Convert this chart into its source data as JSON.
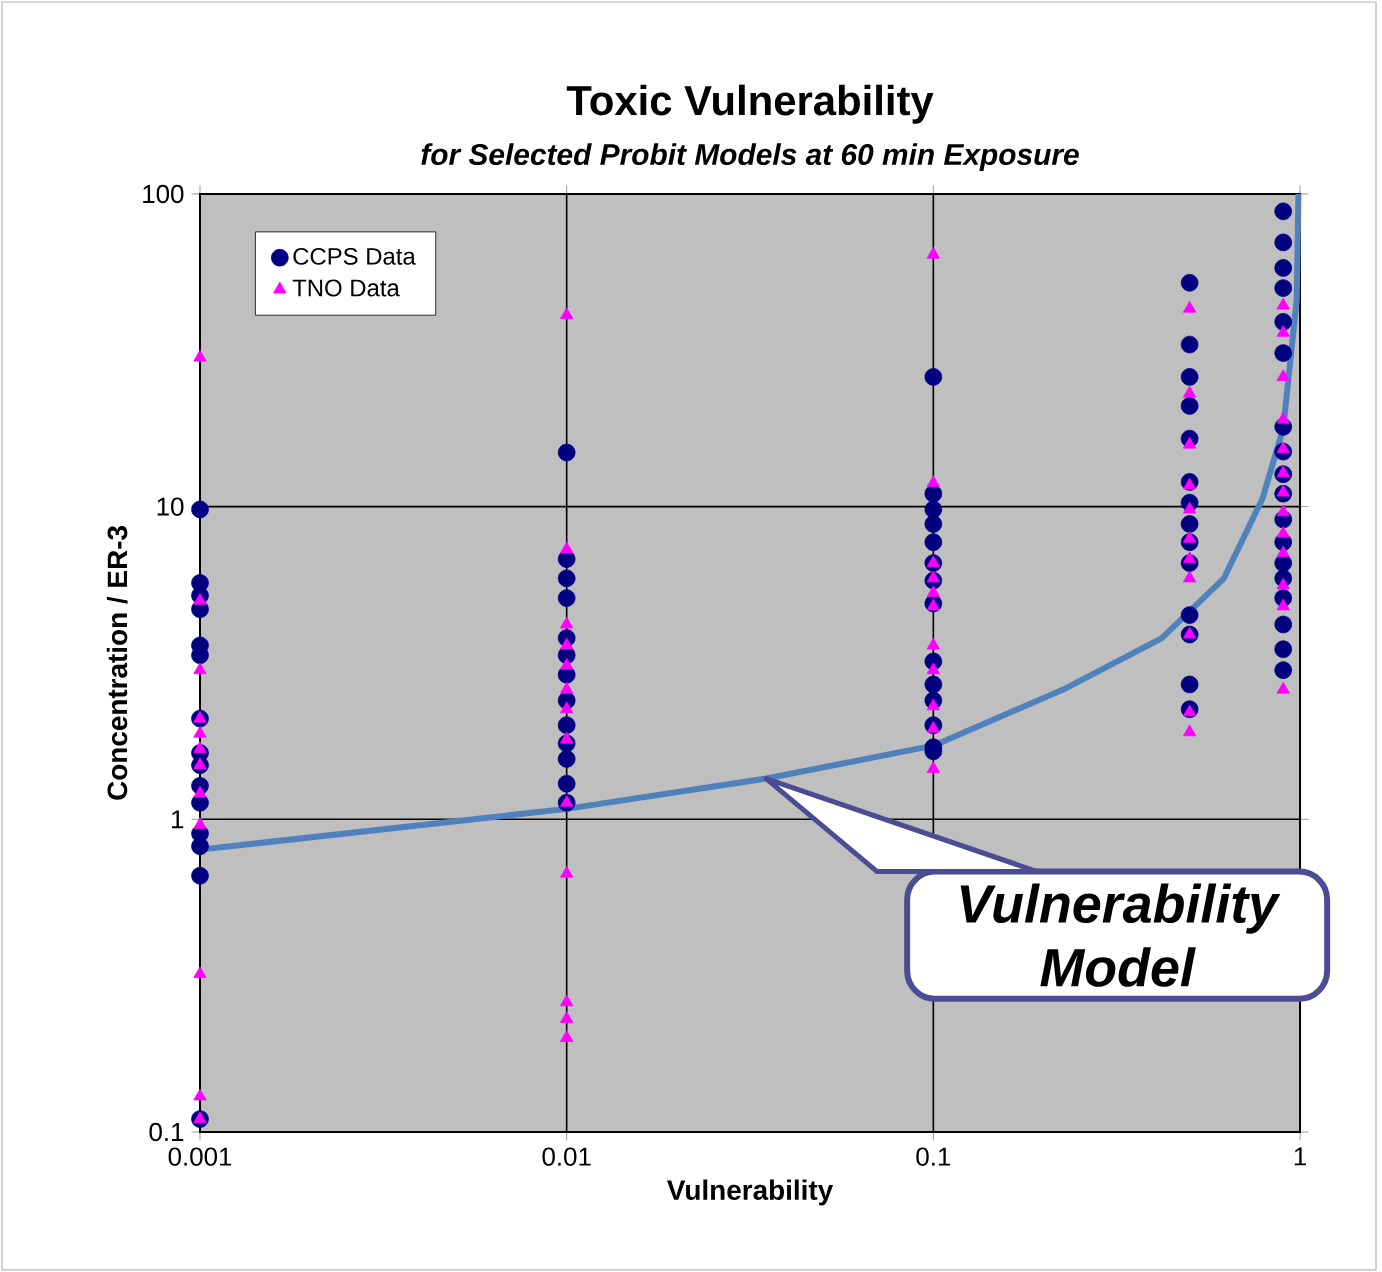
{
  "chart_data": {
    "type": "scatter",
    "title": "Toxic Vulnerability",
    "subtitle": "for Selected Probit Models at 60 min Exposure",
    "xlabel": "Vulnerability",
    "ylabel": "Concentration / ER-3",
    "log": "xy",
    "xlim": [
      0.001,
      1
    ],
    "ylim": [
      0.1,
      100
    ],
    "xticks": [
      0.001,
      0.01,
      0.1,
      1
    ],
    "yticks": [
      0.1,
      1,
      10,
      100
    ],
    "grid": true,
    "legend": "top left",
    "series": [
      {
        "name": "CCPS Data",
        "color": "#000080",
        "marker": "circle",
        "x": [
          0.001,
          0.001,
          0.001,
          0.001,
          0.001,
          0.001,
          0.001,
          0.001,
          0.001,
          0.001,
          0.001,
          0.001,
          0.001,
          0.001,
          0.001,
          0.01,
          0.01,
          0.01,
          0.01,
          0.01,
          0.01,
          0.01,
          0.01,
          0.01,
          0.01,
          0.01,
          0.01,
          0.01,
          0.1,
          0.1,
          0.1,
          0.1,
          0.1,
          0.1,
          0.1,
          0.1,
          0.1,
          0.1,
          0.1,
          0.1,
          0.1,
          0.1,
          0.5,
          0.5,
          0.5,
          0.5,
          0.5,
          0.5,
          0.5,
          0.5,
          0.5,
          0.5,
          0.5,
          0.5,
          0.5,
          0.5,
          0.9,
          0.9,
          0.9,
          0.9,
          0.9,
          0.9,
          0.9,
          0.9,
          0.9,
          0.9,
          0.9,
          0.9,
          0.9,
          0.9,
          0.9,
          0.9,
          0.9,
          0.9
        ],
        "values": [
          9.8,
          5.7,
          5.2,
          4.7,
          3.6,
          3.35,
          2.1,
          1.63,
          1.49,
          1.28,
          1.13,
          0.9,
          0.82,
          0.66,
          0.11,
          14.9,
          6.8,
          5.9,
          5.1,
          3.8,
          3.35,
          2.9,
          2.4,
          2.0,
          1.75,
          1.56,
          1.3,
          1.13,
          26,
          11,
          9.8,
          8.8,
          7.7,
          6.6,
          5.8,
          4.9,
          3.2,
          2.7,
          2.4,
          2.0,
          1.65,
          1.7,
          52,
          33,
          26,
          21,
          16.5,
          12,
          10.3,
          8.8,
          7.7,
          6.6,
          4.5,
          3.9,
          2.7,
          2.25,
          88,
          70,
          58,
          50,
          39,
          31,
          18,
          15,
          12.7,
          11,
          9.1,
          7.7,
          6.6,
          5.9,
          5.1,
          4.2,
          3.5,
          3.0
        ]
      },
      {
        "name": "TNO Data",
        "color": "#ff00ff",
        "marker": "triangle",
        "x": [
          0.001,
          0.001,
          0.001,
          0.001,
          0.001,
          0.001,
          0.001,
          0.001,
          0.001,
          0.001,
          0.001,
          0.001,
          0.01,
          0.01,
          0.01,
          0.01,
          0.01,
          0.01,
          0.01,
          0.01,
          0.01,
          0.01,
          0.01,
          0.01,
          0.01,
          0.1,
          0.1,
          0.1,
          0.1,
          0.1,
          0.1,
          0.1,
          0.1,
          0.1,
          0.1,
          0.1,
          0.5,
          0.5,
          0.5,
          0.5,
          0.5,
          0.5,
          0.5,
          0.5,
          0.5,
          0.5,
          0.5,
          0.9,
          0.9,
          0.9,
          0.9,
          0.9,
          0.9,
          0.9,
          0.9,
          0.9,
          0.9,
          0.9,
          0.9,
          0.9
        ],
        "values": [
          30,
          5.0,
          3.0,
          2.1,
          1.88,
          1.68,
          1.49,
          1.21,
          0.96,
          0.32,
          0.13,
          0.11,
          41,
          7.3,
          4.2,
          3.6,
          3.1,
          2.6,
          2.25,
          1.8,
          1.13,
          0.67,
          0.26,
          0.23,
          0.2,
          64,
          11.9,
          6.6,
          5.9,
          5.3,
          4.8,
          3.6,
          3.0,
          2.3,
          1.95,
          1.45,
          43,
          23,
          15.8,
          11.7,
          9.8,
          7.9,
          6.8,
          5.9,
          3.9,
          2.2,
          1.9,
          44,
          36,
          26,
          19,
          15.3,
          12.8,
          11.1,
          9.6,
          8.2,
          7.1,
          5.6,
          4.8,
          2.6
        ]
      },
      {
        "type": "line",
        "color": "#4f81bd",
        "marker": "none",
        "x": [
          0.001,
          0.01,
          0.035,
          0.1,
          0.226,
          0.42,
          0.62,
          0.79,
          0.9,
          0.98,
          0.99
        ],
        "values": [
          0.8,
          1.08,
          1.35,
          1.72,
          2.6,
          3.8,
          5.9,
          10.6,
          17.8,
          46,
          100
        ]
      }
    ],
    "annotations": [
      {
        "text": "Vulnerability Model",
        "x": 0.035,
        "y": 1.35
      }
    ]
  }
}
